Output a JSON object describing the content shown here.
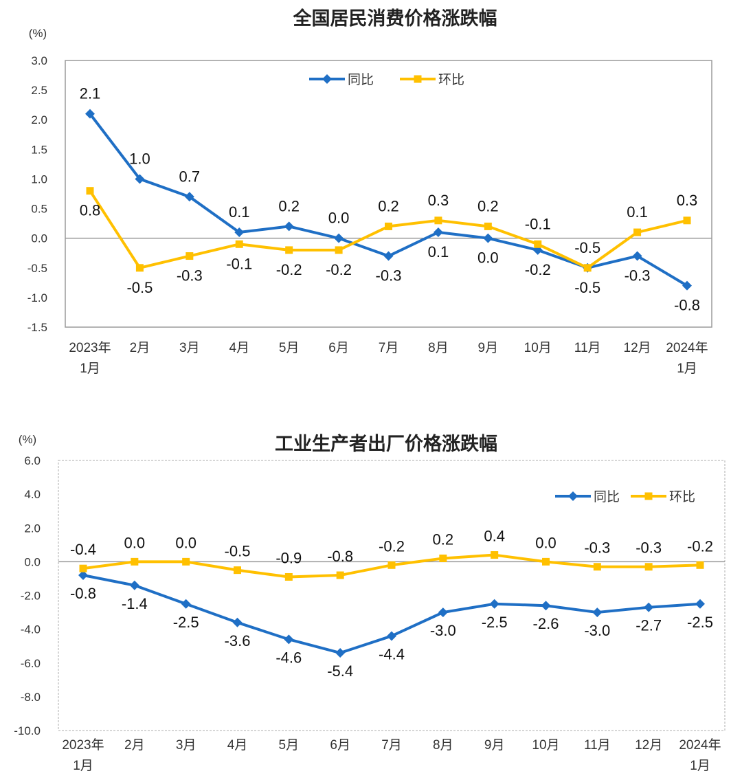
{
  "chart_data": [
    {
      "type": "line",
      "title": "全国居民消费价格涨跌幅",
      "ylabel": "(%)",
      "ylim": [
        -1.5,
        3.0
      ],
      "yticks": [
        "3.0",
        "2.5",
        "2.0",
        "1.5",
        "1.0",
        "0.5",
        "0.0",
        "-0.5",
        "-1.0",
        "-1.5"
      ],
      "ytick_values": [
        3.0,
        2.5,
        2.0,
        1.5,
        1.0,
        0.5,
        0.0,
        -0.5,
        -1.0,
        -1.5
      ],
      "categories": [
        [
          "2023年",
          "1月"
        ],
        [
          "2月"
        ],
        [
          "3月"
        ],
        [
          "4月"
        ],
        [
          "5月"
        ],
        [
          "6月"
        ],
        [
          "7月"
        ],
        [
          "8月"
        ],
        [
          "9月"
        ],
        [
          "10月"
        ],
        [
          "11月"
        ],
        [
          "12月"
        ],
        [
          "2024年",
          "1月"
        ]
      ],
      "legend_position": "top-center",
      "grid": false,
      "series": [
        {
          "name": "同比",
          "color": "#1f6fc5",
          "marker": "diamond",
          "values": [
            2.1,
            1.0,
            0.7,
            0.1,
            0.2,
            0.0,
            -0.3,
            0.1,
            0.0,
            -0.2,
            -0.5,
            -0.3,
            -0.8
          ],
          "labels": [
            "2.1",
            "1.0",
            "0.7",
            "0.1",
            "0.2",
            "0.0",
            "-0.3",
            "0.1",
            "0.0",
            "-0.2",
            "-0.5",
            "-0.3",
            "-0.8"
          ]
        },
        {
          "name": "环比",
          "color": "#ffc000",
          "marker": "square",
          "values": [
            0.8,
            -0.5,
            -0.3,
            -0.1,
            -0.2,
            -0.2,
            0.2,
            0.3,
            0.2,
            -0.1,
            -0.5,
            0.1,
            0.3
          ],
          "labels": [
            "0.8",
            "-0.5",
            "-0.3",
            "-0.1",
            "-0.2",
            "-0.2",
            "0.2",
            "0.3",
            "0.2",
            "-0.1",
            "-0.5",
            "0.1",
            "0.3"
          ]
        }
      ]
    },
    {
      "type": "line",
      "title": "工业生产者出厂价格涨跌幅",
      "ylabel": "(%)",
      "ylim": [
        -10.0,
        6.0
      ],
      "yticks": [
        "6.0",
        "4.0",
        "2.0",
        "0.0",
        "-2.0",
        "-4.0",
        "-6.0",
        "-8.0",
        "-10.0"
      ],
      "ytick_values": [
        6,
        4,
        2,
        0,
        -2,
        -4,
        -6,
        -8,
        -10
      ],
      "categories": [
        [
          "2023年",
          "1月"
        ],
        [
          "2月"
        ],
        [
          "3月"
        ],
        [
          "4月"
        ],
        [
          "5月"
        ],
        [
          "6月"
        ],
        [
          "7月"
        ],
        [
          "8月"
        ],
        [
          "9月"
        ],
        [
          "10月"
        ],
        [
          "11月"
        ],
        [
          "12月"
        ],
        [
          "2024年",
          "1月"
        ]
      ],
      "legend_position": "top-right",
      "grid": false,
      "series": [
        {
          "name": "同比",
          "color": "#1f6fc5",
          "marker": "diamond",
          "values": [
            -0.8,
            -1.4,
            -2.5,
            -3.6,
            -4.6,
            -5.4,
            -4.4,
            -3.0,
            -2.5,
            -2.6,
            -3.0,
            -2.7,
            -2.5
          ],
          "labels": [
            "-0.8",
            "-1.4",
            "-2.5",
            "-3.6",
            "-4.6",
            "-5.4",
            "-4.4",
            "-3.0",
            "-2.5",
            "-2.6",
            "-3.0",
            "-2.7",
            "-2.5"
          ]
        },
        {
          "name": "环比",
          "color": "#ffc000",
          "marker": "square",
          "values": [
            -0.4,
            0.0,
            0.0,
            -0.5,
            -0.9,
            -0.8,
            -0.2,
            0.2,
            0.4,
            0.0,
            -0.3,
            -0.3,
            -0.2
          ],
          "labels": [
            "-0.4",
            "0.0",
            "0.0",
            "-0.5",
            "-0.9",
            "-0.8",
            "-0.2",
            "0.2",
            "0.4",
            "0.0",
            "-0.3",
            "-0.3",
            "-0.2"
          ]
        }
      ]
    }
  ]
}
